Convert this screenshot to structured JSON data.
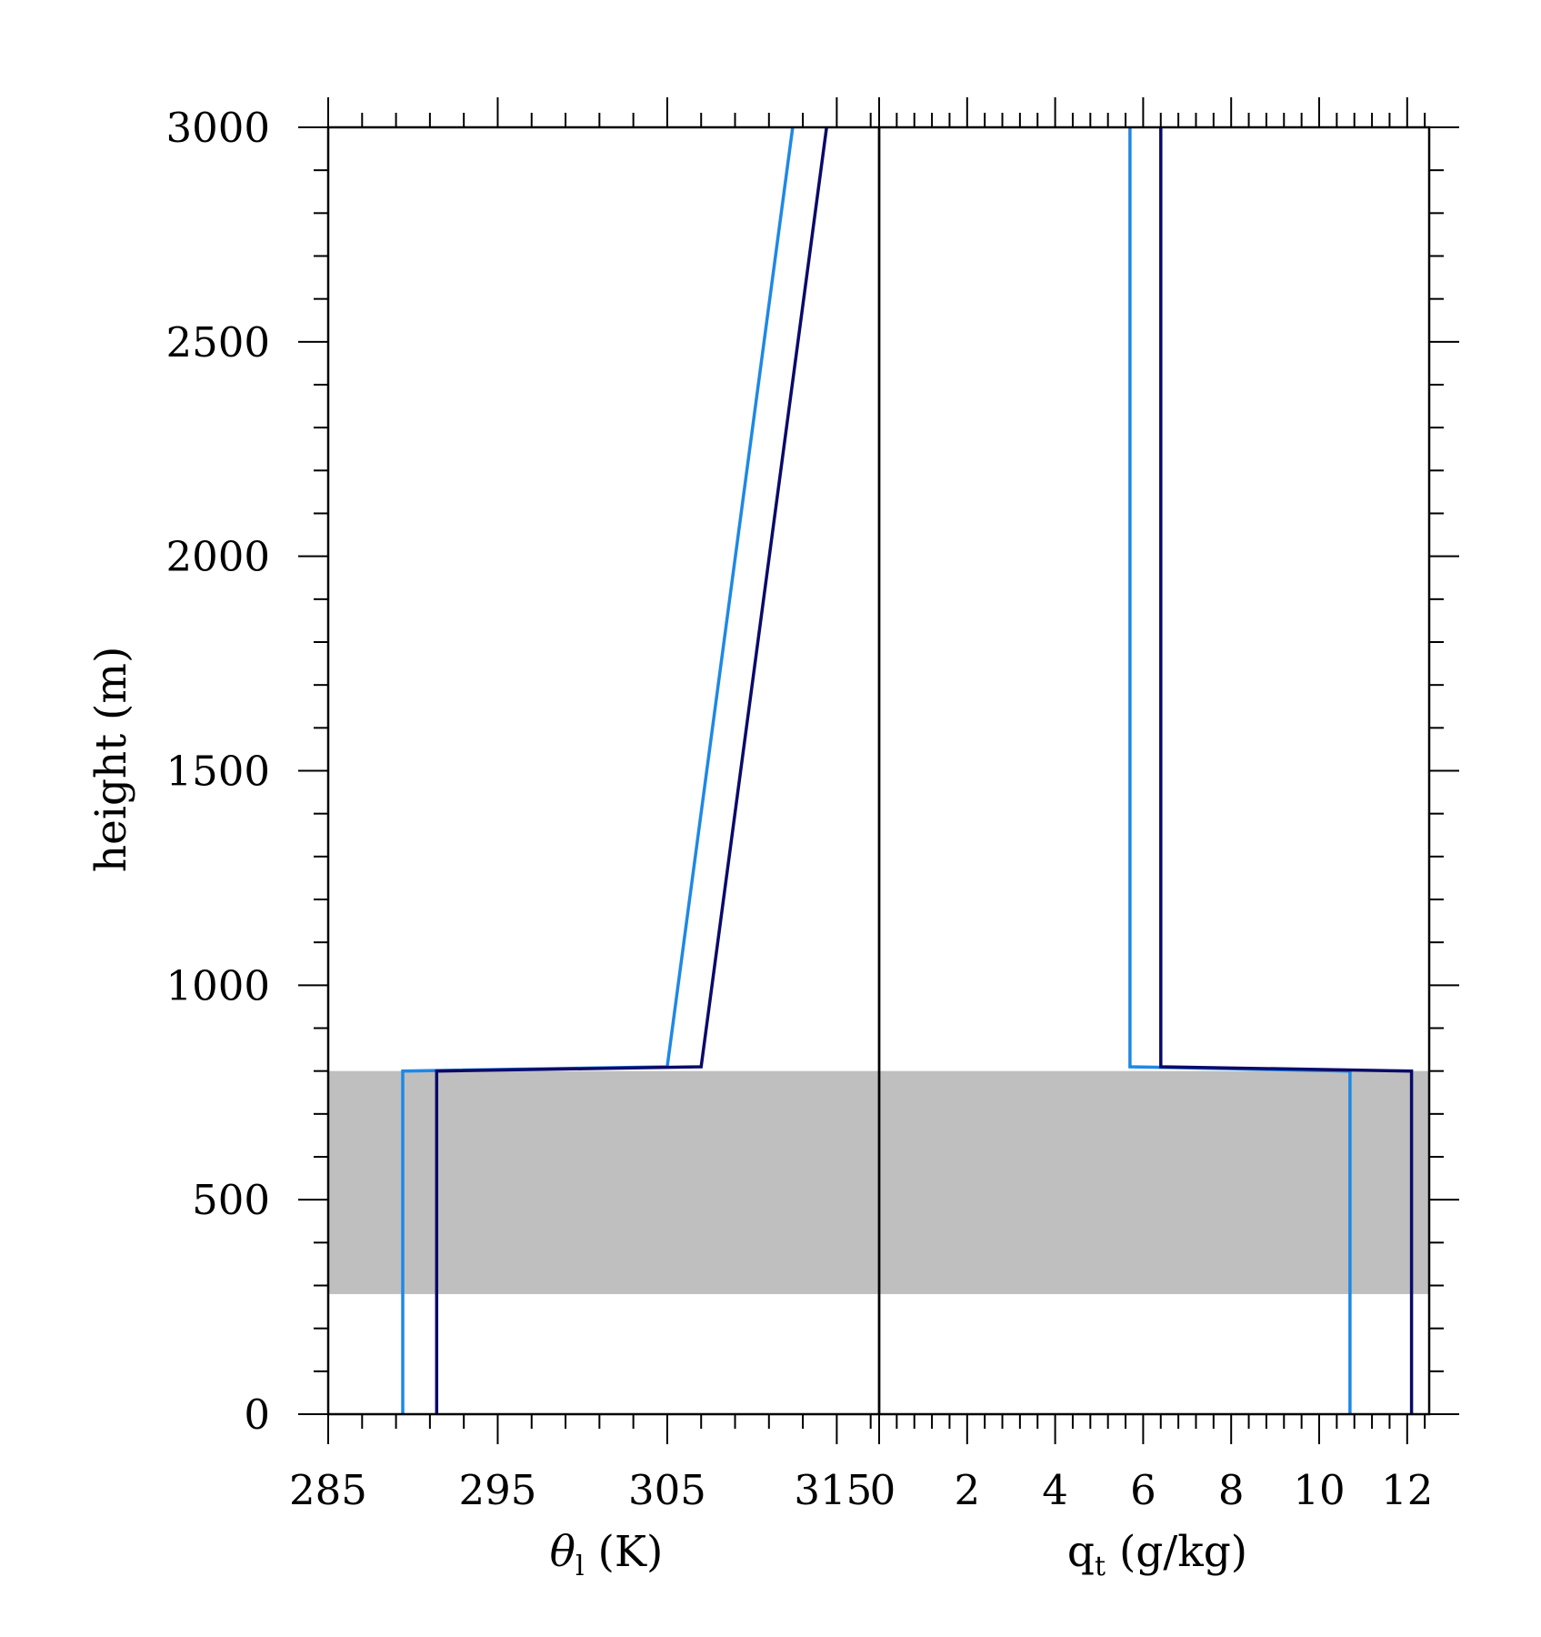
{
  "chart_data": [
    {
      "type": "line",
      "panel": "left",
      "xlabel": {
        "symbol": "θ",
        "subscript": "l",
        "unit": "(K)"
      },
      "ylabel": "height (m)",
      "xlim": [
        285,
        317.5
      ],
      "ylim": [
        0,
        3000
      ],
      "xticks": [
        285,
        295,
        305,
        315
      ],
      "xtick_labels": [
        "285",
        "295",
        "305",
        "315"
      ],
      "yticks": [
        0,
        500,
        1000,
        1500,
        2000,
        2500,
        3000
      ],
      "ytick_labels": [
        "0",
        "500",
        "1000",
        "1500",
        "2000",
        "2500",
        "3000"
      ],
      "shaded_band": {
        "y": [
          280,
          800
        ],
        "color": "#bfbfbf"
      },
      "series": [
        {
          "color": "#1e88e5",
          "x": [
            289.4,
            289.4,
            305.0,
            312.4
          ],
          "y": [
            0,
            800,
            810,
            3000
          ]
        },
        {
          "color": "#0a0a6a",
          "x": [
            291.4,
            291.4,
            307.0,
            314.4
          ],
          "y": [
            0,
            800,
            810,
            3000
          ]
        }
      ]
    },
    {
      "type": "line",
      "panel": "right",
      "xlabel": {
        "symbol": "q",
        "subscript": "t",
        "unit": "(g/kg)"
      },
      "xlim": [
        0,
        12.5
      ],
      "ylim": [
        0,
        3000
      ],
      "xticks": [
        0,
        2,
        4,
        6,
        8,
        10,
        12
      ],
      "xtick_labels": [
        "0",
        "2",
        "4",
        "6",
        "8",
        "10",
        "12"
      ],
      "shaded_band": {
        "y": [
          280,
          800
        ],
        "color": "#bfbfbf"
      },
      "series": [
        {
          "color": "#1e88e5",
          "x": [
            10.7,
            10.7,
            5.7,
            5.7
          ],
          "y": [
            0,
            800,
            810,
            3000
          ]
        },
        {
          "color": "#0a0a6a",
          "x": [
            12.1,
            12.1,
            6.4,
            6.4
          ],
          "y": [
            0,
            800,
            810,
            3000
          ]
        }
      ]
    }
  ]
}
